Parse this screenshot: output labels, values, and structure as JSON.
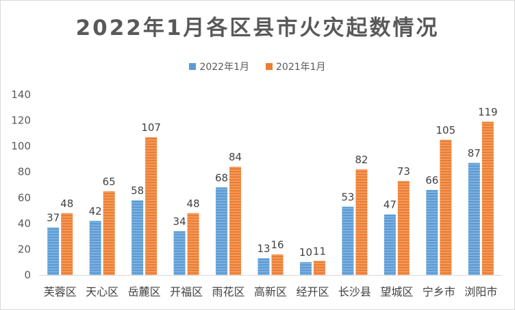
{
  "chart_data": {
    "type": "bar",
    "title": "2022年1月各区县市火灾起数情况",
    "categories": [
      "芙蓉区",
      "天心区",
      "岳麓区",
      "开福区",
      "雨花区",
      "高新区",
      "经开区",
      "长沙县",
      "望城区",
      "宁乡市",
      "浏阳市"
    ],
    "series": [
      {
        "name": "2022年1月",
        "color": "#5b9bd5",
        "values": [
          37,
          42,
          58,
          34,
          68,
          13,
          10,
          53,
          47,
          66,
          87
        ]
      },
      {
        "name": "2021年1月",
        "color": "#ed7d31",
        "values": [
          48,
          65,
          107,
          48,
          84,
          16,
          11,
          82,
          73,
          105,
          119
        ]
      }
    ],
    "yticks": [
      "0",
      "20",
      "40",
      "60",
      "80",
      "100",
      "120",
      "140"
    ],
    "ylim": [
      0,
      140
    ],
    "legend_position": "top",
    "grid": false,
    "data_labels": true
  }
}
